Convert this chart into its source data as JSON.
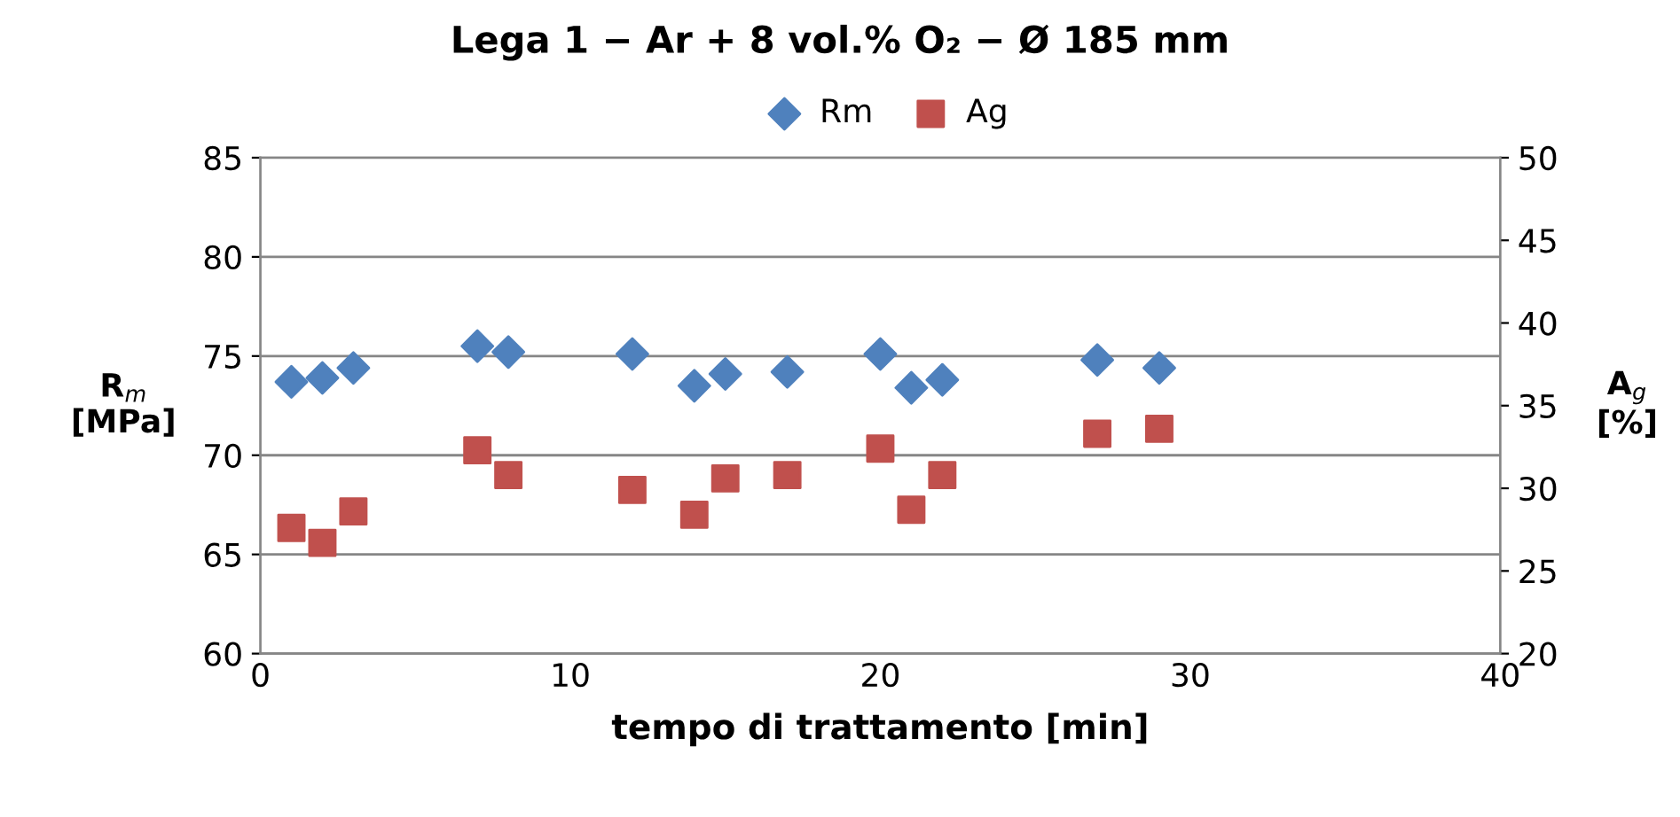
{
  "chart_data": {
    "type": "scatter",
    "title": "Lega 1 − Ar + 8 vol.% O₂ − Ø 185 mm",
    "xlabel": "tempo di trattamento [min]",
    "ylabel": "R$_{m}$\n[MPa]",
    "y2label": "A$_{g}$\n[%]",
    "series": [
      {
        "name": "Rm",
        "color": "#4f81bd",
        "marker": "diamond",
        "x": [
          1,
          2,
          3,
          7,
          8,
          12,
          14,
          15,
          17,
          20,
          21,
          22,
          27,
          29
        ],
        "values": [
          73.7,
          73.9,
          74.4,
          75.5,
          75.2,
          75.1,
          73.5,
          74.1,
          74.2,
          75.1,
          73.4,
          73.8,
          74.8,
          74.4
        ]
      },
      {
        "name": "Ag",
        "color": "#c0504d",
        "marker": "square",
        "axis": "y2",
        "x": [
          1,
          2,
          3,
          7,
          8,
          12,
          14,
          15,
          17,
          20,
          21,
          22,
          27,
          29
        ],
        "values": [
          27.6,
          26.7,
          28.6,
          32.3,
          30.8,
          29.9,
          28.4,
          30.6,
          30.8,
          32.4,
          28.7,
          30.8,
          33.3,
          33.6
        ]
      }
    ],
    "xlim": [
      0,
      40
    ],
    "xticks": [
      0,
      10,
      20,
      30,
      40
    ],
    "ylim": [
      60,
      85
    ],
    "yticks": [
      60,
      65,
      70,
      75,
      80,
      85
    ],
    "y2lim": [
      20,
      50
    ],
    "y2ticks": [
      20,
      25,
      30,
      35,
      40,
      45,
      50
    ],
    "grid": "y",
    "legend": "top"
  }
}
